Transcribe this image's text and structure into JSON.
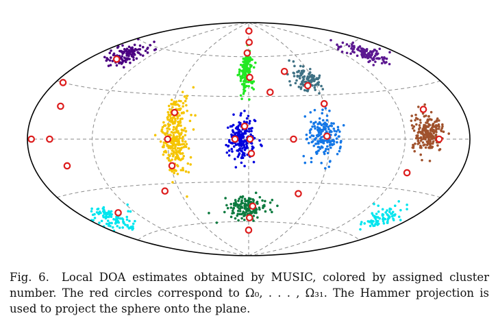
{
  "caption": {
    "label": "Fig. 6.",
    "text": "Local DOA estimates obtained by MUSIC, colored by assigned cluster number. The red circles correspond to Ω₀, . . . , Ω₃₁. The Hammer projection is used to project the sphere onto the plane."
  },
  "chart_data": {
    "type": "scatter",
    "projection": "hammer",
    "grid": true,
    "axes": {
      "longitude_range_deg": [
        -180,
        180
      ],
      "latitude_range_deg": [
        -90,
        90
      ]
    },
    "gridlines": {
      "longitude_deg": [
        -120,
        -60,
        0,
        60,
        120
      ],
      "latitude_deg": [
        -60,
        -30,
        0,
        30,
        60
      ]
    },
    "marker_colors": {
      "estimates_edge": "#dd1c1c",
      "outline": "#000000",
      "grid": "#8a8a8a"
    },
    "series": [
      {
        "color": "#4b0082",
        "center": [
          -150,
          52
        ],
        "spread": [
          11,
          4
        ],
        "count": 120
      },
      {
        "color": "#22e822",
        "center": [
          -2,
          49
        ],
        "spread": [
          3,
          8
        ],
        "count": 180
      },
      {
        "color": "#3f7184",
        "center": [
          55,
          42
        ],
        "spread": [
          7,
          5
        ],
        "count": 110
      },
      {
        "color": "#5b1790",
        "center": [
          147,
          53
        ],
        "spread": [
          9,
          4
        ],
        "count": 110
      },
      {
        "color": "#f5c400",
        "center": [
          -55,
          3
        ],
        "spread": [
          5,
          13
        ],
        "count": 280
      },
      {
        "color": "#0000dd",
        "center": [
          -5,
          0
        ],
        "spread": [
          5,
          7
        ],
        "count": 200
      },
      {
        "color": "#1477e6",
        "center": [
          56,
          2
        ],
        "spread": [
          6,
          8
        ],
        "count": 180
      },
      {
        "color": "#a0522d",
        "center": [
          141,
          3
        ],
        "spread": [
          7,
          5
        ],
        "count": 220
      },
      {
        "color": "#0c7a3f",
        "center": [
          -2,
          -49
        ],
        "spread": [
          10,
          4
        ],
        "count": 150
      },
      {
        "color": "#00e5ee",
        "center": [
          -153,
          -47
        ],
        "spread": [
          11,
          4
        ],
        "count": 100
      },
      {
        "color": "#00e5ee",
        "center": [
          149,
          -47
        ],
        "spread": [
          10,
          4
        ],
        "count": 80
      }
    ],
    "omega_points": [
      [
        -150,
        48
      ],
      [
        -172,
        30
      ],
      [
        -156,
        18
      ],
      [
        -57,
        18
      ],
      [
        -176,
        0
      ],
      [
        -158,
        0
      ],
      [
        -60,
        0
      ],
      [
        -10,
        0
      ],
      [
        1,
        0
      ],
      [
        -3,
        9
      ],
      [
        2,
        -10
      ],
      [
        -147,
        -15
      ],
      [
        -59,
        -18
      ],
      [
        -73,
        -35
      ],
      [
        -138,
        -45
      ],
      [
        4,
        -48
      ],
      [
        0,
        -67
      ],
      [
        1,
        82
      ],
      [
        1,
        72
      ],
      [
        -2,
        63
      ],
      [
        1,
        44
      ],
      [
        18,
        33
      ],
      [
        36,
        48
      ],
      [
        52,
        37
      ],
      [
        60,
        24
      ],
      [
        33,
        0
      ],
      [
        58,
        2
      ],
      [
        142,
        17
      ],
      [
        150,
        0
      ],
      [
        129,
        -20
      ],
      [
        44,
        -38
      ],
      [
        1,
        -57
      ]
    ]
  }
}
